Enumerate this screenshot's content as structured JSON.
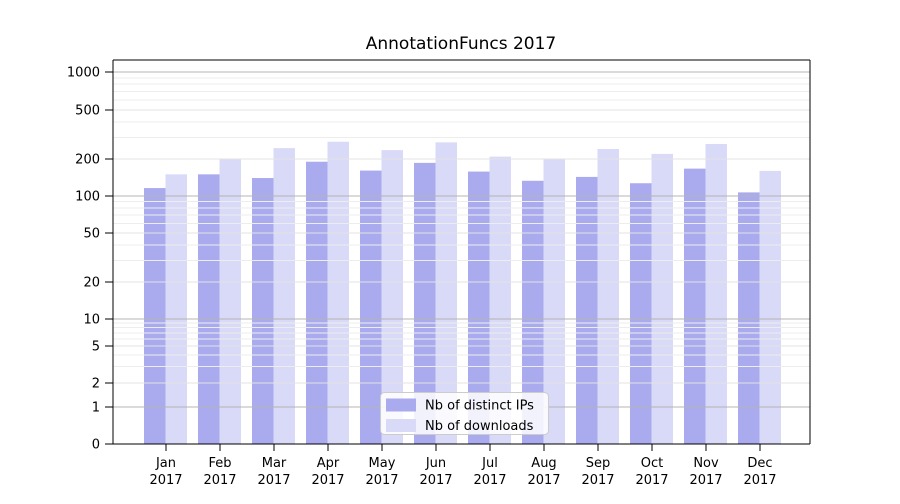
{
  "chart_data": {
    "type": "bar",
    "title": "AnnotationFuncs 2017",
    "categories": [
      "Jan",
      "Feb",
      "Mar",
      "Apr",
      "May",
      "Jun",
      "Jul",
      "Aug",
      "Sep",
      "Oct",
      "Nov",
      "Dec"
    ],
    "category_year": "2017",
    "series": [
      {
        "name": "Nb of distinct IPs",
        "color": "#aaaaee",
        "values": [
          116,
          150,
          140,
          190,
          161,
          186,
          158,
          133,
          143,
          127,
          167,
          107
        ]
      },
      {
        "name": "Nb of downloads",
        "color": "#d9d9f8",
        "values": [
          150,
          199,
          245,
          276,
          236,
          273,
          209,
          199,
          241,
          220,
          265,
          160
        ]
      }
    ],
    "yticks": [
      0,
      1,
      2,
      5,
      10,
      20,
      50,
      100,
      200,
      500,
      1000
    ],
    "ylim": [
      0,
      1250
    ],
    "yscale": "log-with-zero",
    "xlabel": "",
    "ylabel": "",
    "grid": "horizontal",
    "legend": {
      "position": "bottom-center",
      "entries": [
        "Nb of distinct IPs",
        "Nb of downloads"
      ]
    },
    "colors": {
      "bar_dark": "#aaaaee",
      "bar_light": "#d9d9f8",
      "grid_major_power": "#b4b4b4",
      "grid_major": "#e3e3e3",
      "grid_minor": "#ededed",
      "spine": "#000000",
      "legend_border": "#cccccc"
    }
  }
}
